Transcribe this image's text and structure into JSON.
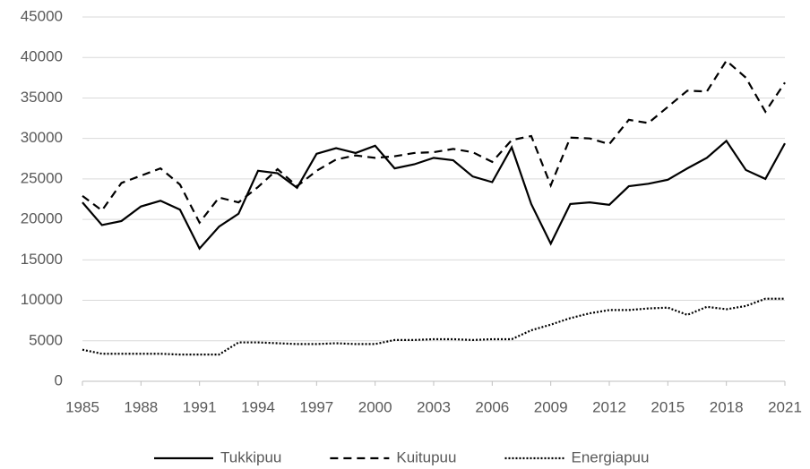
{
  "chart_data": {
    "type": "line",
    "x": [
      1985,
      1986,
      1987,
      1988,
      1989,
      1990,
      1991,
      1992,
      1993,
      1994,
      1995,
      1996,
      1997,
      1998,
      1999,
      2000,
      2001,
      2002,
      2003,
      2004,
      2005,
      2006,
      2007,
      2008,
      2009,
      2010,
      2011,
      2012,
      2013,
      2014,
      2015,
      2016,
      2017,
      2018,
      2019,
      2020,
      2021
    ],
    "series": [
      {
        "name": "Tukkipuu",
        "color": "#000000",
        "dash": "solid",
        "values": [
          22100,
          19300,
          19800,
          21600,
          22300,
          21200,
          16400,
          19100,
          20700,
          26000,
          25700,
          23900,
          28100,
          28800,
          28200,
          29100,
          26300,
          26800,
          27600,
          27300,
          25300,
          24600,
          28900,
          21900,
          17000,
          21900,
          22100,
          21800,
          24100,
          24400,
          24900,
          26300,
          27600,
          29700,
          26100,
          25000,
          29400
        ]
      },
      {
        "name": "Kuitupuu",
        "color": "#000000",
        "dash": "dashed",
        "values": [
          22900,
          21100,
          24500,
          25400,
          26300,
          24300,
          19600,
          22700,
          22100,
          24000,
          26200,
          24100,
          26000,
          27400,
          27900,
          27600,
          27800,
          28200,
          28300,
          28700,
          28300,
          27100,
          29800,
          30300,
          24200,
          30100,
          30000,
          29300,
          32300,
          31900,
          33900,
          35900,
          35800,
          39600,
          37500,
          33300,
          36900
        ]
      },
      {
        "name": "Energiapuu",
        "color": "#000000",
        "dash": "dotted",
        "values": [
          3900,
          3400,
          3400,
          3400,
          3400,
          3300,
          3300,
          3300,
          4800,
          4800,
          4700,
          4600,
          4600,
          4700,
          4600,
          4600,
          5100,
          5100,
          5200,
          5200,
          5100,
          5200,
          5200,
          6300,
          7000,
          7800,
          8400,
          8800,
          8800,
          9000,
          9100,
          8200,
          9200,
          8900,
          9300,
          10200,
          10200
        ]
      }
    ],
    "xlim": [
      1985,
      2021
    ],
    "xticks": [
      1985,
      1988,
      1991,
      1994,
      1997,
      2000,
      2003,
      2006,
      2009,
      2012,
      2015,
      2018,
      2021
    ],
    "ylim": [
      0,
      45000
    ],
    "yticks": [
      0,
      5000,
      10000,
      15000,
      20000,
      25000,
      30000,
      35000,
      40000,
      45000
    ],
    "grid": true,
    "legend": "bottom"
  }
}
